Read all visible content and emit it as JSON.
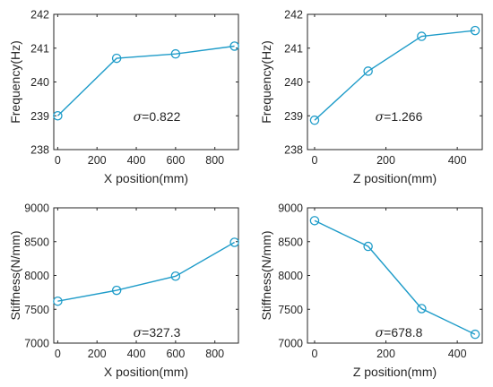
{
  "chart_data": [
    {
      "type": "line",
      "xlabel": "X position(mm)",
      "ylabel": "Frequency(Hz)",
      "xlim": [
        -20,
        920
      ],
      "ylim": [
        238,
        242
      ],
      "xticks": [
        0,
        200,
        400,
        600,
        800
      ],
      "yticks": [
        238,
        239,
        240,
        241,
        242
      ],
      "grid": true,
      "x": [
        0,
        300,
        600,
        900
      ],
      "y": [
        239.0,
        240.7,
        240.83,
        241.06
      ],
      "annotation": {
        "symbol": "σ",
        "text": "=0.822"
      }
    },
    {
      "type": "line",
      "xlabel": "Z position(mm)",
      "ylabel": "Frequency(Hz)",
      "xlim": [
        -20,
        470
      ],
      "ylim": [
        238,
        242
      ],
      "xticks": [
        0,
        200,
        400
      ],
      "yticks": [
        238,
        239,
        240,
        241,
        242
      ],
      "grid": true,
      "x": [
        0,
        150,
        300,
        450
      ],
      "y": [
        238.87,
        240.32,
        241.35,
        241.52
      ],
      "annotation": {
        "symbol": "σ",
        "text": "=1.266"
      }
    },
    {
      "type": "line",
      "xlabel": "X position(mm)",
      "ylabel": "Stiffness(N/mm)",
      "xlim": [
        -20,
        920
      ],
      "ylim": [
        7000,
        9000
      ],
      "xticks": [
        0,
        200,
        400,
        600,
        800
      ],
      "yticks": [
        7000,
        7500,
        8000,
        8500,
        9000
      ],
      "grid": true,
      "x": [
        0,
        300,
        600,
        900
      ],
      "y": [
        7620,
        7780,
        7990,
        8490
      ],
      "annotation": {
        "symbol": "σ",
        "text": "=327.3"
      }
    },
    {
      "type": "line",
      "xlabel": "Z position(mm)",
      "ylabel": "Stiffness(N/mm)",
      "xlim": [
        -20,
        470
      ],
      "ylim": [
        7000,
        9000
      ],
      "xticks": [
        0,
        200,
        400
      ],
      "yticks": [
        7000,
        7500,
        8000,
        8500,
        9000
      ],
      "grid": true,
      "x": [
        0,
        150,
        300,
        450
      ],
      "y": [
        8810,
        8430,
        7510,
        7130
      ],
      "annotation": {
        "symbol": "σ",
        "text": "=678.8"
      }
    }
  ],
  "colors": {
    "series": "#1f9cc9",
    "axes": "#262626",
    "grid": "#dcdcdc"
  }
}
